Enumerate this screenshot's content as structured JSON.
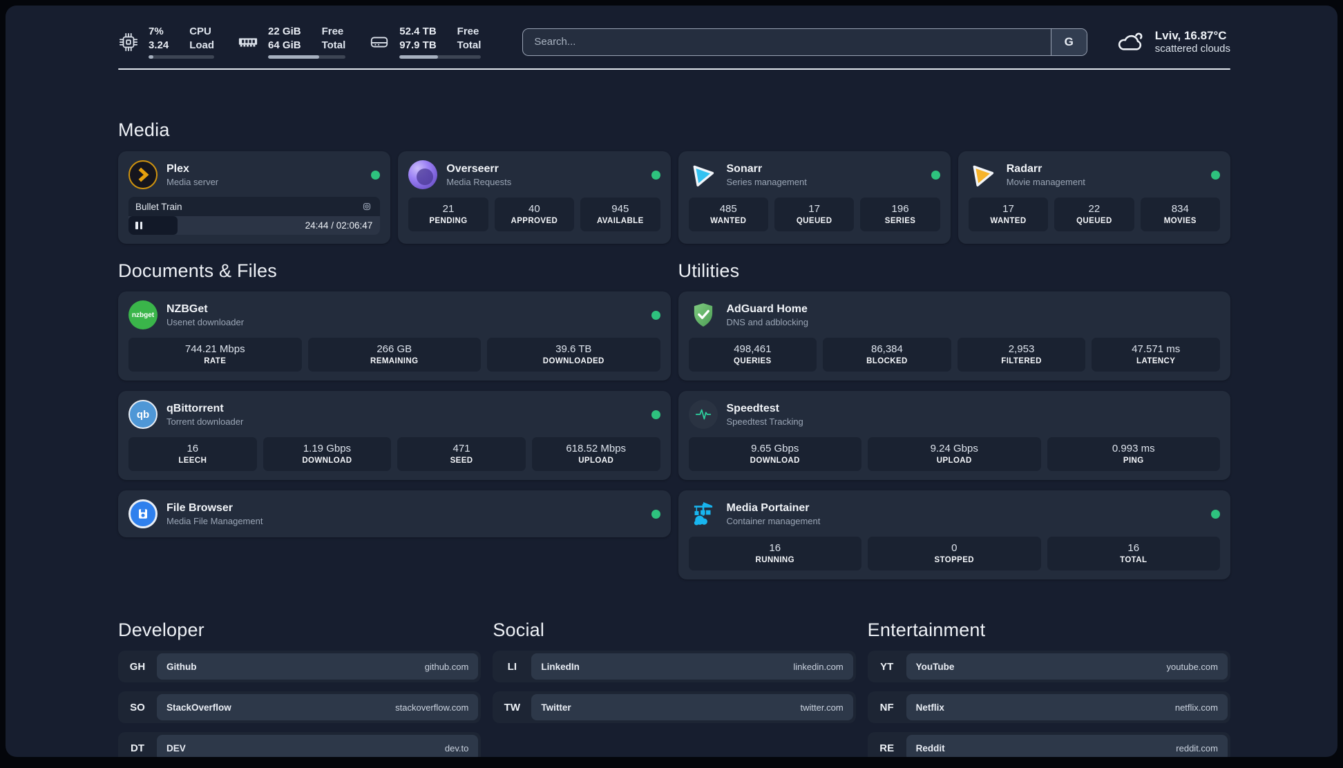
{
  "topbar": {
    "cpu": {
      "v1": "7%",
      "v2": "3.24",
      "l1": "CPU",
      "l2": "Load",
      "progress": 7
    },
    "memory": {
      "v1": "22 GiB",
      "v2": "64 GiB",
      "l1": "Free",
      "l2": "Total",
      "progress": 66
    },
    "storage": {
      "v1": "52.4 TB",
      "v2": "97.9 TB",
      "l1": "Free",
      "l2": "Total",
      "progress": 47
    },
    "search": {
      "placeholder": "Search...",
      "provider_label": "G"
    },
    "weather": {
      "location_temp": "Lviv, 16.87°C",
      "condition": "scattered clouds"
    }
  },
  "sections": {
    "media": "Media",
    "documents": "Documents & Files",
    "utilities": "Utilities"
  },
  "apps": {
    "plex": {
      "name": "Plex",
      "desc": "Media server",
      "player": {
        "title": "Bullet Train",
        "time": "24:44 / 02:06:47",
        "progress": 19.5
      }
    },
    "overseerr": {
      "name": "Overseerr",
      "desc": "Media Requests",
      "stats": [
        {
          "value": "21",
          "label": "PENDING"
        },
        {
          "value": "40",
          "label": "APPROVED"
        },
        {
          "value": "945",
          "label": "AVAILABLE"
        }
      ]
    },
    "sonarr": {
      "name": "Sonarr",
      "desc": "Series management",
      "stats": [
        {
          "value": "485",
          "label": "WANTED"
        },
        {
          "value": "17",
          "label": "QUEUED"
        },
        {
          "value": "196",
          "label": "SERIES"
        }
      ]
    },
    "radarr": {
      "name": "Radarr",
      "desc": "Movie management",
      "stats": [
        {
          "value": "17",
          "label": "WANTED"
        },
        {
          "value": "22",
          "label": "QUEUED"
        },
        {
          "value": "834",
          "label": "MOVIES"
        }
      ]
    },
    "nzbget": {
      "name": "NZBGet",
      "desc": "Usenet downloader",
      "logo_text": "nzbget",
      "stats": [
        {
          "value": "744.21 Mbps",
          "label": "RATE"
        },
        {
          "value": "266 GB",
          "label": "REMAINING"
        },
        {
          "value": "39.6 TB",
          "label": "DOWNLOADED"
        }
      ]
    },
    "qbittorrent": {
      "name": "qBittorrent",
      "desc": "Torrent downloader",
      "logo_text": "qb",
      "stats": [
        {
          "value": "16",
          "label": "LEECH"
        },
        {
          "value": "1.19 Gbps",
          "label": "DOWNLOAD"
        },
        {
          "value": "471",
          "label": "SEED"
        },
        {
          "value": "618.52 Mbps",
          "label": "UPLOAD"
        }
      ]
    },
    "filebrowser": {
      "name": "File Browser",
      "desc": "Media File Management"
    },
    "adguard": {
      "name": "AdGuard Home",
      "desc": "DNS and adblocking",
      "stats": [
        {
          "value": "498,461",
          "label": "QUERIES"
        },
        {
          "value": "86,384",
          "label": "BLOCKED"
        },
        {
          "value": "2,953",
          "label": "FILTERED"
        },
        {
          "value": "47.571 ms",
          "label": "LATENCY"
        }
      ]
    },
    "speedtest": {
      "name": "Speedtest",
      "desc": "Speedtest Tracking",
      "stats": [
        {
          "value": "9.65 Gbps",
          "label": "DOWNLOAD"
        },
        {
          "value": "9.24 Gbps",
          "label": "UPLOAD"
        },
        {
          "value": "0.993 ms",
          "label": "PING"
        }
      ]
    },
    "portainer": {
      "name": "Media Portainer",
      "desc": "Container management",
      "stats": [
        {
          "value": "16",
          "label": "RUNNING"
        },
        {
          "value": "0",
          "label": "STOPPED"
        },
        {
          "value": "16",
          "label": "TOTAL"
        }
      ]
    }
  },
  "links": {
    "developer": {
      "title": "Developer",
      "items": [
        {
          "abbr": "GH",
          "name": "Github",
          "url": "github.com"
        },
        {
          "abbr": "SO",
          "name": "StackOverflow",
          "url": "stackoverflow.com"
        },
        {
          "abbr": "DT",
          "name": "DEV",
          "url": "dev.to"
        }
      ]
    },
    "social": {
      "title": "Social",
      "items": [
        {
          "abbr": "LI",
          "name": "LinkedIn",
          "url": "linkedin.com"
        },
        {
          "abbr": "TW",
          "name": "Twitter",
          "url": "twitter.com"
        }
      ]
    },
    "entertainment": {
      "title": "Entertainment",
      "items": [
        {
          "abbr": "YT",
          "name": "YouTube",
          "url": "youtube.com"
        },
        {
          "abbr": "NF",
          "name": "Netflix",
          "url": "netflix.com"
        },
        {
          "abbr": "RE",
          "name": "Reddit",
          "url": "reddit.com"
        }
      ]
    }
  },
  "colors": {
    "status_online": "#2ec27e",
    "plex": "#e5a00d",
    "sonarr": "#33c2f1",
    "radarr": "#f7b42c",
    "nzbget": "#3ab54a",
    "qbittorrent": "#4f97d6",
    "filebrowser": "#2f80ed",
    "adguard": "#68bc71",
    "speedtest": "#2dd4a0",
    "portainer": "#18b6f0"
  }
}
